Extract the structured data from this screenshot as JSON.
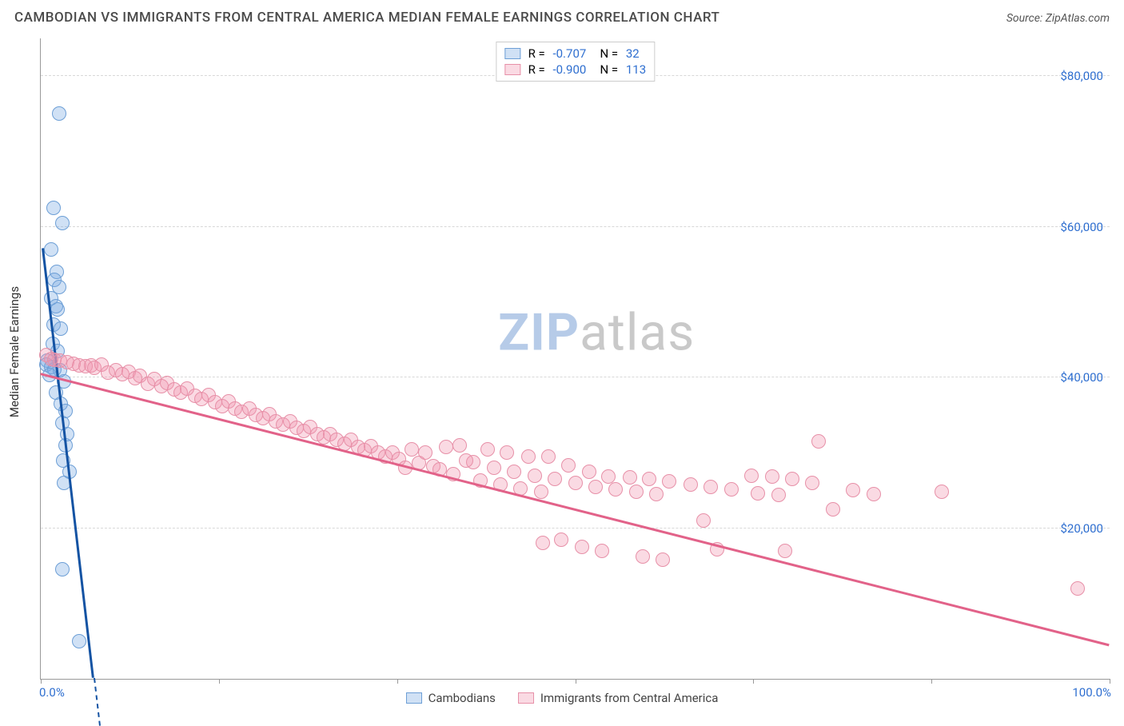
{
  "header": {
    "title": "CAMBODIAN VS IMMIGRANTS FROM CENTRAL AMERICA MEDIAN FEMALE EARNINGS CORRELATION CHART",
    "source_prefix": "Source: ",
    "source_name": "ZipAtlas.com"
  },
  "chart": {
    "type": "scatter",
    "ylabel": "Median Female Earnings",
    "xlim": [
      0,
      100
    ],
    "ylim": [
      0,
      85000
    ],
    "background_color": "#ffffff",
    "grid_color": "#d8d8d8",
    "axis_color": "#999999",
    "tick_color": "#2f6fd0",
    "yticks": [
      {
        "v": 20000,
        "label": "$20,000"
      },
      {
        "v": 40000,
        "label": "$40,000"
      },
      {
        "v": 60000,
        "label": "$60,000"
      },
      {
        "v": 80000,
        "label": "$80,000"
      }
    ],
    "xtick_positions": [
      0,
      16.67,
      33.33,
      50,
      66.67,
      83.33,
      100
    ],
    "xtick_labels": {
      "left": "0.0%",
      "right": "100.0%"
    },
    "marker_radius": 9,
    "marker_stroke": 1.5,
    "series": [
      {
        "key": "cambodians",
        "label": "Cambodians",
        "color_fill": "rgba(121,168,225,0.35)",
        "color_stroke": "#6d9fd6",
        "trend_color": "#1453a3",
        "trend_dash_ext": true,
        "R": "-0.707",
        "N": "32",
        "trend": {
          "x1": 0.3,
          "y1": 57000,
          "x2": 5.0,
          "y2": 0
        },
        "points": [
          [
            1.7,
            75000
          ],
          [
            1.2,
            62500
          ],
          [
            2.0,
            60500
          ],
          [
            1.0,
            57000
          ],
          [
            1.5,
            54000
          ],
          [
            1.3,
            53000
          ],
          [
            1.7,
            52000
          ],
          [
            1.0,
            50500
          ],
          [
            1.4,
            49500
          ],
          [
            1.6,
            49000
          ],
          [
            1.2,
            47000
          ],
          [
            1.9,
            46500
          ],
          [
            1.1,
            44500
          ],
          [
            1.6,
            43500
          ],
          [
            0.6,
            42200
          ],
          [
            0.5,
            41700
          ],
          [
            1.0,
            41400
          ],
          [
            1.3,
            41100
          ],
          [
            1.8,
            41000
          ],
          [
            0.8,
            40300
          ],
          [
            2.2,
            39500
          ],
          [
            1.4,
            38000
          ],
          [
            1.9,
            36500
          ],
          [
            2.3,
            35500
          ],
          [
            2.0,
            34000
          ],
          [
            2.5,
            32500
          ],
          [
            2.3,
            31000
          ],
          [
            2.1,
            29000
          ],
          [
            2.7,
            27500
          ],
          [
            2.2,
            26000
          ],
          [
            2.0,
            14500
          ],
          [
            3.6,
            5000
          ]
        ]
      },
      {
        "key": "central_america",
        "label": "Immigrants from Central America",
        "color_fill": "rgba(240,150,175,0.35)",
        "color_stroke": "#e790a8",
        "trend_color": "#e26289",
        "trend_dash_ext": false,
        "R": "-0.900",
        "N": "113",
        "trend": {
          "x1": 0,
          "y1": 40500,
          "x2": 100,
          "y2": 4500
        },
        "points": [
          [
            0.5,
            43000
          ],
          [
            1.0,
            42500
          ],
          [
            1.3,
            42300
          ],
          [
            1.8,
            42200
          ],
          [
            2.5,
            42000
          ],
          [
            3.1,
            41800
          ],
          [
            3.6,
            41600
          ],
          [
            4.2,
            41500
          ],
          [
            4.7,
            41600
          ],
          [
            5.0,
            41300
          ],
          [
            5.7,
            41700
          ],
          [
            6.3,
            40600
          ],
          [
            7.0,
            41000
          ],
          [
            7.6,
            40400
          ],
          [
            8.2,
            40800
          ],
          [
            8.8,
            39900
          ],
          [
            9.3,
            40200
          ],
          [
            10.0,
            39200
          ],
          [
            10.6,
            39800
          ],
          [
            11.3,
            38800
          ],
          [
            11.8,
            39300
          ],
          [
            12.5,
            38400
          ],
          [
            13.1,
            38000
          ],
          [
            13.7,
            38500
          ],
          [
            14.4,
            37600
          ],
          [
            15.0,
            37100
          ],
          [
            15.7,
            37700
          ],
          [
            16.3,
            36700
          ],
          [
            17.0,
            36200
          ],
          [
            17.6,
            36800
          ],
          [
            18.2,
            35900
          ],
          [
            18.8,
            35400
          ],
          [
            19.5,
            35900
          ],
          [
            20.1,
            35000
          ],
          [
            20.8,
            34600
          ],
          [
            21.4,
            35100
          ],
          [
            22.0,
            34200
          ],
          [
            22.7,
            33700
          ],
          [
            23.3,
            34200
          ],
          [
            23.9,
            33300
          ],
          [
            24.6,
            32900
          ],
          [
            25.2,
            33400
          ],
          [
            25.9,
            32500
          ],
          [
            26.5,
            32000
          ],
          [
            27.1,
            32500
          ],
          [
            27.7,
            31700
          ],
          [
            28.4,
            31200
          ],
          [
            29.0,
            31700
          ],
          [
            29.7,
            30800
          ],
          [
            30.3,
            30400
          ],
          [
            30.9,
            30900
          ],
          [
            31.6,
            30000
          ],
          [
            32.2,
            29500
          ],
          [
            32.9,
            30000
          ],
          [
            33.5,
            29200
          ],
          [
            34.1,
            28000
          ],
          [
            34.7,
            30500
          ],
          [
            35.4,
            28700
          ],
          [
            36.0,
            30000
          ],
          [
            36.7,
            28200
          ],
          [
            37.3,
            27800
          ],
          [
            37.9,
            30800
          ],
          [
            38.6,
            27200
          ],
          [
            39.2,
            31000
          ],
          [
            40.5,
            28800
          ],
          [
            41.1,
            26300
          ],
          [
            41.8,
            30500
          ],
          [
            42.4,
            28000
          ],
          [
            43.0,
            25800
          ],
          [
            43.6,
            30000
          ],
          [
            44.3,
            27500
          ],
          [
            44.9,
            25300
          ],
          [
            45.6,
            29500
          ],
          [
            46.2,
            27000
          ],
          [
            46.8,
            24800
          ],
          [
            47.5,
            29500
          ],
          [
            48.1,
            26500
          ],
          [
            48.7,
            18500
          ],
          [
            49.4,
            28300
          ],
          [
            50.0,
            26000
          ],
          [
            50.6,
            17500
          ],
          [
            51.3,
            27500
          ],
          [
            51.9,
            25500
          ],
          [
            52.5,
            17000
          ],
          [
            53.1,
            26800
          ],
          [
            53.8,
            25100
          ],
          [
            55.1,
            26700
          ],
          [
            55.7,
            24800
          ],
          [
            56.3,
            16200
          ],
          [
            56.9,
            26500
          ],
          [
            57.6,
            24500
          ],
          [
            58.2,
            15800
          ],
          [
            58.8,
            26200
          ],
          [
            60.8,
            25800
          ],
          [
            62.0,
            21000
          ],
          [
            62.7,
            25500
          ],
          [
            63.3,
            17200
          ],
          [
            64.6,
            25200
          ],
          [
            66.5,
            27000
          ],
          [
            67.1,
            24600
          ],
          [
            68.4,
            26800
          ],
          [
            69.0,
            24400
          ],
          [
            69.6,
            17000
          ],
          [
            70.3,
            26500
          ],
          [
            72.2,
            26000
          ],
          [
            72.8,
            31500
          ],
          [
            74.1,
            22500
          ],
          [
            76.0,
            25000
          ],
          [
            77.9,
            24500
          ],
          [
            84.3,
            24800
          ],
          [
            97.0,
            12000
          ],
          [
            39.8,
            29000
          ],
          [
            47.0,
            18000
          ]
        ]
      }
    ],
    "legend_top": {
      "r_label": "R =",
      "n_label": "N ="
    },
    "watermark": {
      "zip": "ZIP",
      "atlas": "atlas",
      "zip_color": "#b6cbe8",
      "atlas_color": "#c9c9c9"
    }
  }
}
